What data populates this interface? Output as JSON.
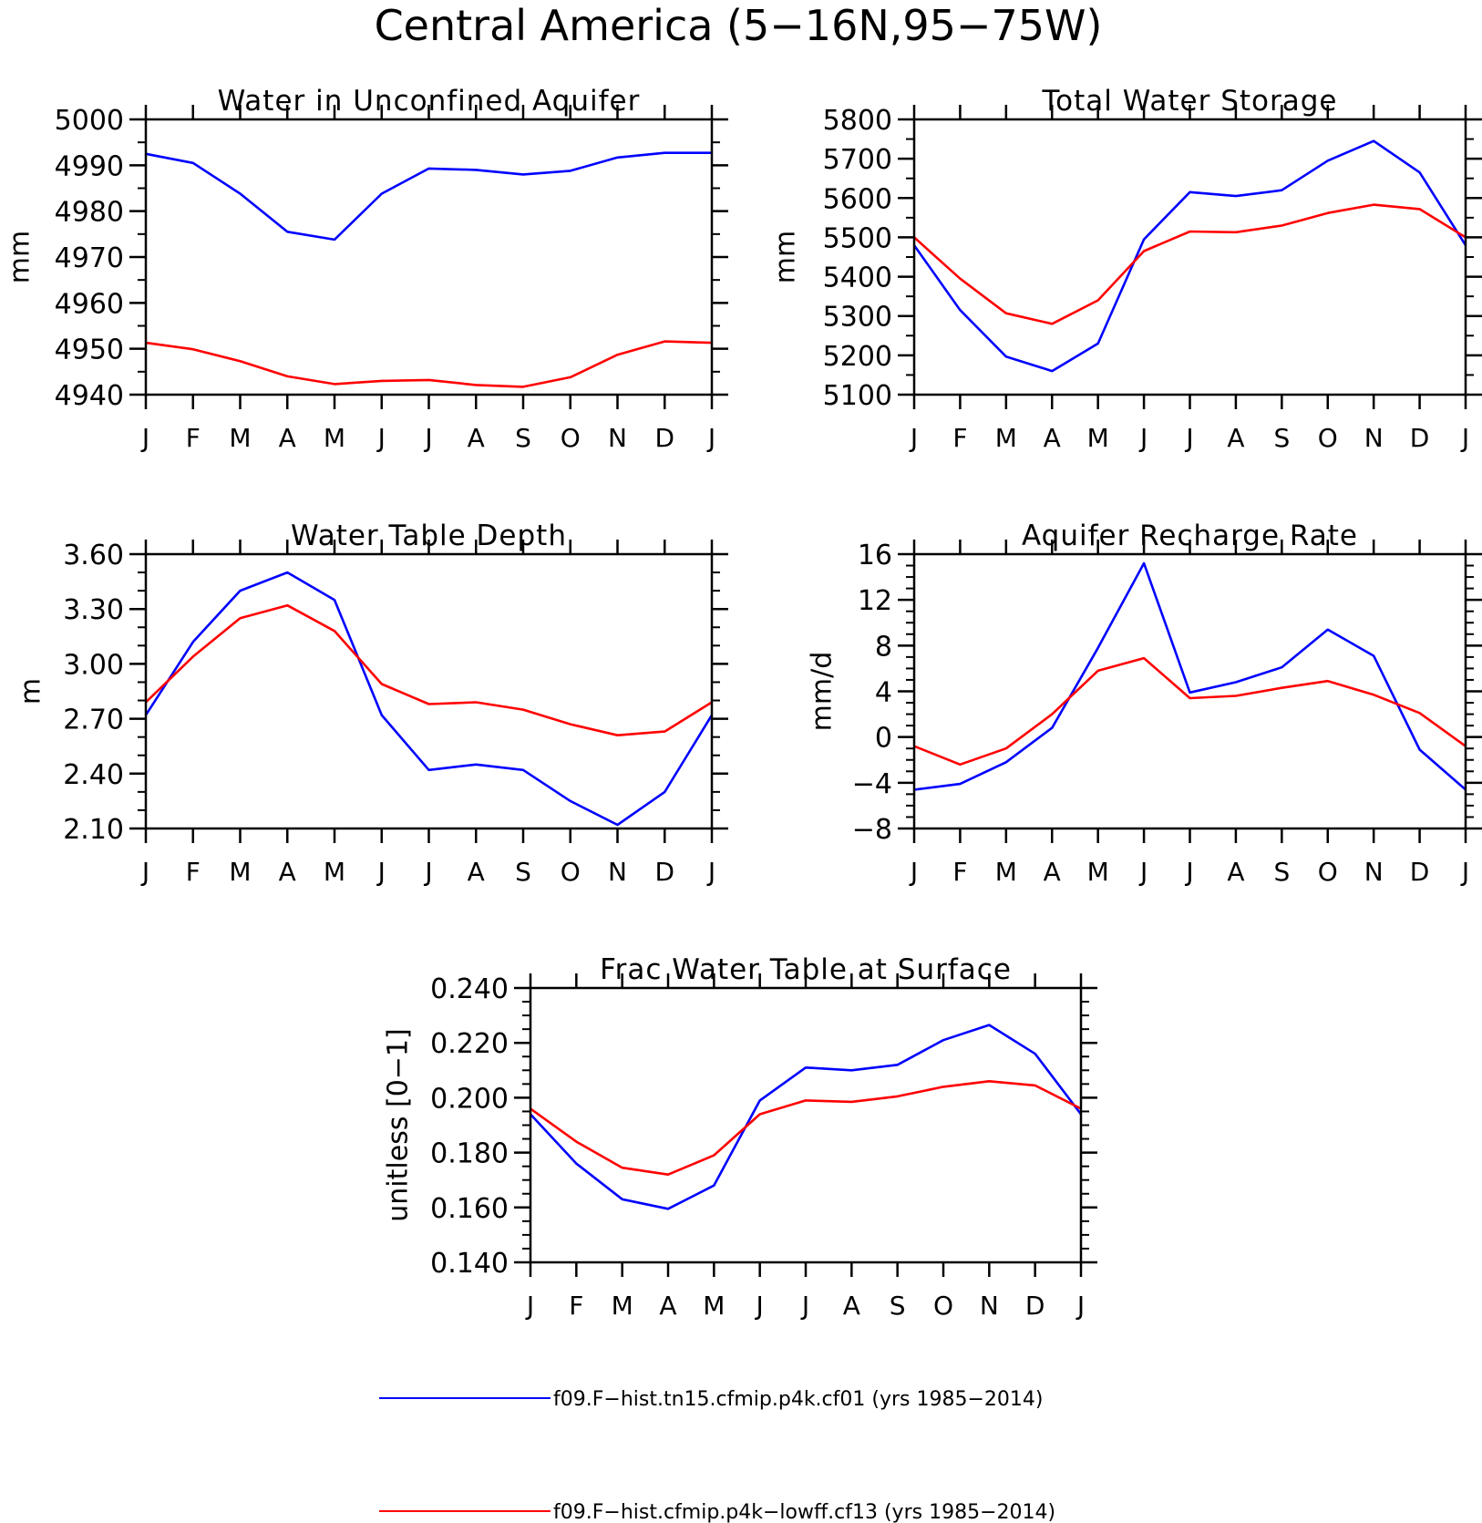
{
  "figure": {
    "title": "Central America (5−16N,95−75W)",
    "months": [
      "J",
      "F",
      "M",
      "A",
      "M",
      "J",
      "J",
      "A",
      "S",
      "O",
      "N",
      "D",
      "J"
    ],
    "colors": {
      "series_1": "#0000ff",
      "series_2": "#ff0000",
      "axis": "#000000"
    }
  },
  "legend": [
    {
      "label": "f09.F−hist.tn15.cfmip.p4k.cf01 (yrs 1985−2014)",
      "color": "#0000ff"
    },
    {
      "label": "f09.F−hist.cfmip.p4k−lowff.cf13 (yrs 1985−2014)",
      "color": "#ff0000"
    }
  ],
  "chart_data": [
    {
      "type": "line",
      "title": "Water in Unconfined Aquifer",
      "xlabel": "",
      "ylabel": "mm",
      "x": [
        "J",
        "F",
        "M",
        "A",
        "M",
        "J",
        "J",
        "A",
        "S",
        "O",
        "N",
        "D",
        "J"
      ],
      "ylim": [
        4940,
        5000
      ],
      "yticks": [
        4940,
        4950,
        4960,
        4970,
        4980,
        4990,
        5000
      ],
      "ytick_labels": [
        "4940",
        "4950",
        "4960",
        "4970",
        "4980",
        "4990",
        "5000"
      ],
      "minor_per_major": 2,
      "series": [
        {
          "color": "#0000ff",
          "values": [
            4992.5,
            4990.5,
            4983.8,
            4975.5,
            4973.8,
            4983.8,
            4989.3,
            4989.0,
            4988.0,
            4988.8,
            4991.7,
            4992.7,
            4992.7
          ]
        },
        {
          "color": "#ff0000",
          "values": [
            4951.3,
            4949.9,
            4947.3,
            4944.0,
            4942.3,
            4943.0,
            4943.2,
            4942.1,
            4941.7,
            4943.8,
            4948.7,
            4951.6,
            4951.3
          ]
        }
      ]
    },
    {
      "type": "line",
      "title": "Total Water Storage",
      "xlabel": "",
      "ylabel": "mm",
      "x": [
        "J",
        "F",
        "M",
        "A",
        "M",
        "J",
        "J",
        "A",
        "S",
        "O",
        "N",
        "D",
        "J"
      ],
      "ylim": [
        5100,
        5800
      ],
      "yticks": [
        5100,
        5200,
        5300,
        5400,
        5500,
        5600,
        5700,
        5800
      ],
      "ytick_labels": [
        "5100",
        "5200",
        "5300",
        "5400",
        "5500",
        "5600",
        "5700",
        "5800"
      ],
      "minor_per_major": 2,
      "series": [
        {
          "color": "#0000ff",
          "values": [
            5480,
            5315,
            5197,
            5160,
            5230,
            5495,
            5615,
            5605,
            5620,
            5695,
            5745,
            5665,
            5480
          ]
        },
        {
          "color": "#ff0000",
          "values": [
            5500,
            5395,
            5307,
            5280,
            5340,
            5465,
            5515,
            5513,
            5530,
            5562,
            5583,
            5572,
            5500
          ]
        }
      ]
    },
    {
      "type": "line",
      "title": "Water Table Depth",
      "xlabel": "",
      "ylabel": "m",
      "x": [
        "J",
        "F",
        "M",
        "A",
        "M",
        "J",
        "J",
        "A",
        "S",
        "O",
        "N",
        "D",
        "J"
      ],
      "ylim": [
        2.1,
        3.6
      ],
      "yticks": [
        2.1,
        2.4,
        2.7,
        3.0,
        3.3,
        3.6
      ],
      "ytick_labels": [
        "2.10",
        "2.40",
        "2.70",
        "3.00",
        "3.30",
        "3.60"
      ],
      "minor_per_major": 3,
      "series": [
        {
          "color": "#0000ff",
          "values": [
            2.72,
            3.12,
            3.4,
            3.5,
            3.35,
            2.72,
            2.42,
            2.45,
            2.42,
            2.25,
            2.12,
            2.3,
            2.72
          ]
        },
        {
          "color": "#ff0000",
          "values": [
            2.79,
            3.04,
            3.25,
            3.32,
            3.18,
            2.89,
            2.78,
            2.79,
            2.75,
            2.67,
            2.61,
            2.63,
            2.79
          ]
        }
      ]
    },
    {
      "type": "line",
      "title": "Aquifer Recharge Rate",
      "xlabel": "",
      "ylabel": "mm/d",
      "x": [
        "J",
        "F",
        "M",
        "A",
        "M",
        "J",
        "J",
        "A",
        "S",
        "O",
        "N",
        "D",
        "J"
      ],
      "ylim": [
        -8,
        16
      ],
      "yticks": [
        -8,
        -4,
        0,
        4,
        8,
        12,
        16
      ],
      "ytick_labels": [
        "−8",
        "−4",
        "0",
        "4",
        "8",
        "12",
        "16"
      ],
      "minor_per_major": 4,
      "series": [
        {
          "color": "#0000ff",
          "values": [
            -4.6,
            -4.1,
            -2.2,
            0.8,
            7.8,
            15.2,
            3.9,
            4.8,
            6.1,
            9.4,
            7.1,
            -1.1,
            -4.6
          ]
        },
        {
          "color": "#ff0000",
          "values": [
            -0.8,
            -2.4,
            -1.0,
            2.0,
            5.8,
            6.9,
            3.4,
            3.6,
            4.3,
            4.9,
            3.7,
            2.1,
            -0.8
          ]
        }
      ]
    },
    {
      "type": "line",
      "title": "Frac Water Table at Surface",
      "xlabel": "",
      "ylabel": "unitless [0−1]",
      "x": [
        "J",
        "F",
        "M",
        "A",
        "M",
        "J",
        "J",
        "A",
        "S",
        "O",
        "N",
        "D",
        "J"
      ],
      "ylim": [
        0.14,
        0.24
      ],
      "yticks": [
        0.14,
        0.16,
        0.18,
        0.2,
        0.22,
        0.24
      ],
      "ytick_labels": [
        "0.140",
        "0.160",
        "0.180",
        "0.200",
        "0.220",
        "0.240"
      ],
      "minor_per_major": 4,
      "series": [
        {
          "color": "#0000ff",
          "values": [
            0.194,
            0.176,
            0.163,
            0.1595,
            0.168,
            0.199,
            0.211,
            0.21,
            0.212,
            0.221,
            0.2265,
            0.216,
            0.194
          ]
        },
        {
          "color": "#ff0000",
          "values": [
            0.196,
            0.184,
            0.1745,
            0.172,
            0.179,
            0.194,
            0.199,
            0.1985,
            0.2005,
            0.204,
            0.206,
            0.2045,
            0.196
          ]
        }
      ]
    }
  ]
}
